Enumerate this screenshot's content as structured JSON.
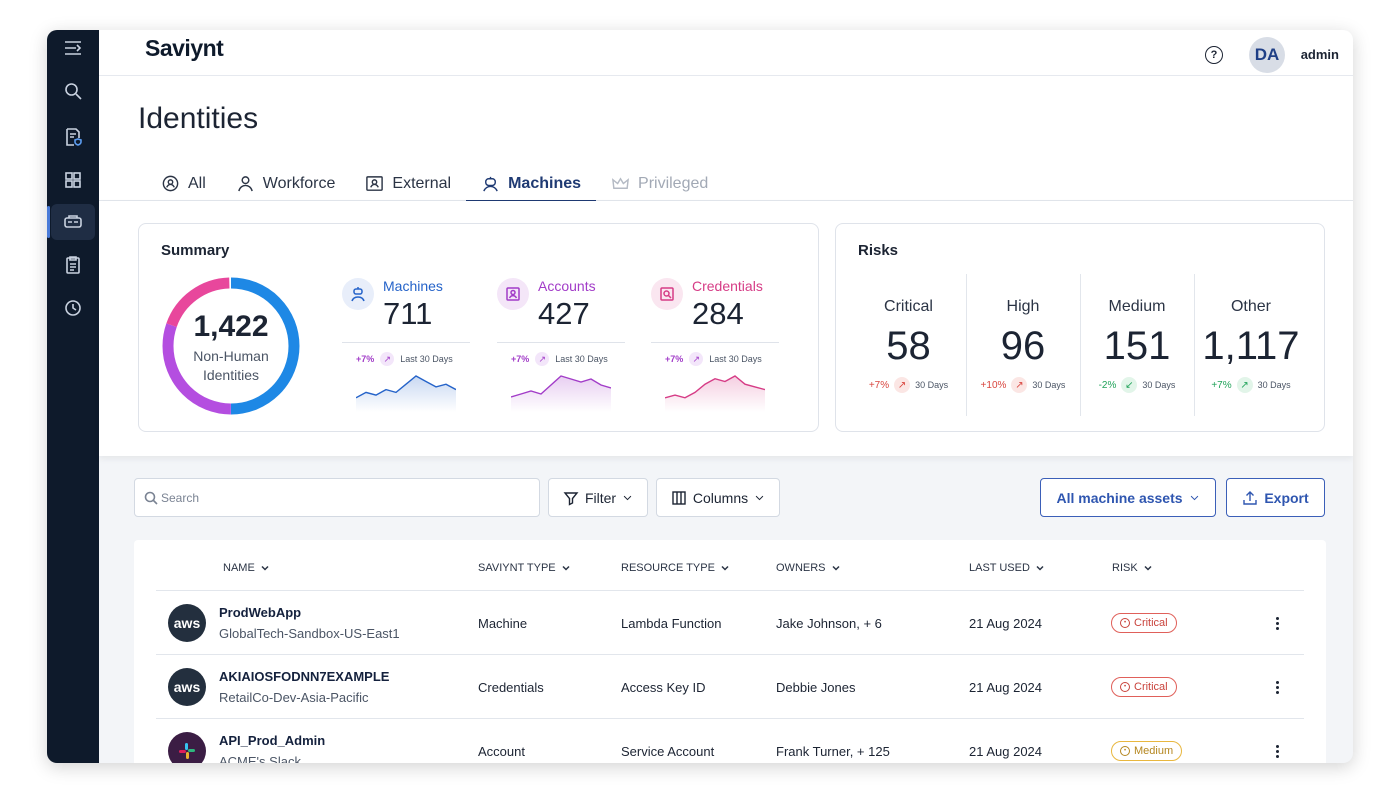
{
  "brand": {
    "logo": "Saviynt"
  },
  "topbar": {
    "help_icon": "help-circle-icon",
    "avatar_initials": "DA",
    "username": "admin"
  },
  "sidebar": {
    "items": [
      {
        "name": "menu-toggle",
        "icon": "menu-icon"
      },
      {
        "name": "search",
        "icon": "search-icon"
      },
      {
        "name": "documents",
        "icon": "document-shield-icon"
      },
      {
        "name": "dashboard",
        "icon": "grid-icon"
      },
      {
        "name": "identities",
        "icon": "identity-card-icon",
        "active": true
      },
      {
        "name": "clipboard",
        "icon": "clipboard-icon"
      },
      {
        "name": "history",
        "icon": "clock-icon"
      }
    ]
  },
  "page": {
    "title": "Identities"
  },
  "tabs": [
    {
      "label": "All",
      "icon": "gear-users-icon",
      "state": "normal"
    },
    {
      "label": "Workforce",
      "icon": "person-icon",
      "state": "normal"
    },
    {
      "label": "External",
      "icon": "id-badge-icon",
      "state": "normal"
    },
    {
      "label": "Machines",
      "icon": "robot-icon",
      "state": "active"
    },
    {
      "label": "Privileged",
      "icon": "crown-icon",
      "state": "disabled"
    }
  ],
  "summary": {
    "title": "Summary",
    "total": "1,422",
    "total_label": "Non-Human Identities",
    "donut_colors": [
      "#1e88e5",
      "#b44ee0",
      "#e8479c"
    ],
    "metrics": [
      {
        "label": "Machines",
        "value": "711",
        "pct": "+7%",
        "period": "Last 30 Days",
        "color": "#2563c9",
        "trend": [
          3,
          5,
          4,
          6,
          5,
          8,
          11,
          9,
          7,
          8,
          6
        ]
      },
      {
        "label": "Accounts",
        "value": "427",
        "pct": "+7%",
        "period": "Last 30 Days",
        "color": "#a23cc8",
        "trend": [
          3,
          4,
          5,
          4,
          7,
          10,
          9,
          8,
          9,
          7,
          6
        ]
      },
      {
        "label": "Credentials",
        "value": "284",
        "pct": "+7%",
        "period": "Last 30 Days",
        "color": "#d63c86",
        "trend": [
          3,
          4,
          3,
          5,
          8,
          10,
          9,
          11,
          8,
          7,
          6
        ]
      }
    ]
  },
  "risks": {
    "title": "Risks",
    "items": [
      {
        "label": "Critical",
        "value": "58",
        "pct": "+7%",
        "period": "30 Days",
        "direction": "up",
        "color": "#d9463f"
      },
      {
        "label": "High",
        "value": "96",
        "pct": "+10%",
        "period": "30 Days",
        "direction": "up",
        "color": "#d9463f"
      },
      {
        "label": "Medium",
        "value": "151",
        "pct": "-2%",
        "period": "30 Days",
        "direction": "down",
        "color": "#21a35a"
      },
      {
        "label": "Other",
        "value": "1,117",
        "pct": "+7%",
        "period": "30 Days",
        "direction": "up",
        "color": "#21a35a"
      }
    ]
  },
  "toolbar": {
    "search_placeholder": "Search",
    "filter_label": "Filter",
    "columns_label": "Columns",
    "assets_label": "All machine assets",
    "export_label": "Export"
  },
  "table": {
    "columns": [
      "NAME",
      "SAVIYNT TYPE",
      "RESOURCE TYPE",
      "OWNERS",
      "LAST USED",
      "RISK"
    ],
    "rows": [
      {
        "logo": "aws",
        "name": "ProdWebApp",
        "sub": "GlobalTech-Sandbox-US-East1",
        "type": "Machine",
        "resource": "Lambda Function",
        "owners": "Jake Johnson, + 6",
        "last_used": "21 Aug 2024",
        "risk": "Critical"
      },
      {
        "logo": "aws",
        "name": "AKIAIOSFODNN7EXAMPLE",
        "sub": "RetailCo-Dev-Asia-Pacific",
        "type": "Credentials",
        "resource": "Access Key ID",
        "owners": "Debbie Jones",
        "last_used": "21 Aug 2024",
        "risk": "Critical"
      },
      {
        "logo": "slack",
        "name": "API_Prod_Admin",
        "sub": "ACME's Slack",
        "type": "Account",
        "resource": "Service Account",
        "owners": "Frank Turner, + 125",
        "last_used": "21 Aug 2024",
        "risk": "Medium"
      }
    ]
  }
}
